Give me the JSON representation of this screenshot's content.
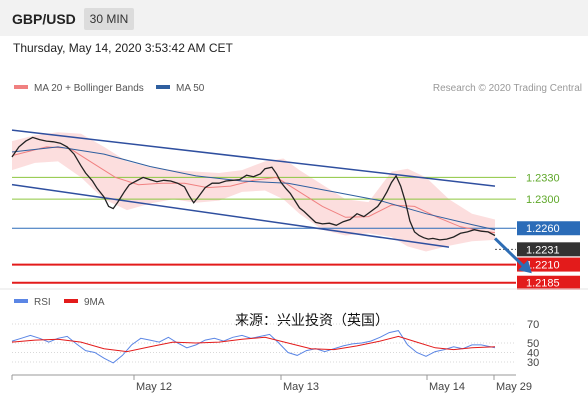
{
  "header": {
    "symbol": "GBP/USD",
    "timeframe": "30 MIN"
  },
  "timestamp": "Thursday, May 14, 2020 3:53:42 AM CET",
  "watermark": "来源：兴业投资（英国）",
  "chart_data": [
    {
      "type": "line",
      "title": "",
      "legend": [
        {
          "label": "MA 20 + Bollinger Bands",
          "color": "#f08080"
        },
        {
          "label": "MA 50",
          "color": "#2f5f9f"
        }
      ],
      "credit": "Research © 2020 Trading Central",
      "legend_position": "top-left",
      "ylim": [
        1.2175,
        1.242
      ],
      "x_labels": [
        "May 12",
        "May 13",
        "May 14",
        "May 29"
      ],
      "price_series": [
        [
          0,
          1.2358
        ],
        [
          3,
          1.2372
        ],
        [
          6,
          1.238
        ],
        [
          9,
          1.2385
        ],
        [
          12,
          1.2382
        ],
        [
          15,
          1.238
        ],
        [
          18,
          1.2379
        ],
        [
          21,
          1.2377
        ],
        [
          24,
          1.2372
        ],
        [
          27,
          1.2362
        ],
        [
          30,
          1.2346
        ],
        [
          32,
          1.2336
        ],
        [
          35,
          1.2325
        ],
        [
          37,
          1.2315
        ],
        [
          40,
          1.2303
        ],
        [
          42,
          1.229
        ],
        [
          44,
          1.2287
        ],
        [
          46,
          1.2296
        ],
        [
          49,
          1.2311
        ],
        [
          51,
          1.232
        ],
        [
          54,
          1.2325
        ],
        [
          57,
          1.233
        ],
        [
          60,
          1.2327
        ],
        [
          63,
          1.2324
        ],
        [
          66,
          1.2326
        ],
        [
          69,
          1.2325
        ],
        [
          72,
          1.2322
        ],
        [
          75,
          1.2317
        ],
        [
          77,
          1.2305
        ],
        [
          79,
          1.2295
        ],
        [
          81,
          1.2303
        ],
        [
          84,
          1.2316
        ],
        [
          87,
          1.2322
        ],
        [
          90,
          1.2322
        ],
        [
          93,
          1.2325
        ],
        [
          96,
          1.2326
        ],
        [
          99,
          1.2327
        ],
        [
          102,
          1.2333
        ],
        [
          105,
          1.2331
        ],
        [
          108,
          1.2335
        ],
        [
          110,
          1.2342
        ],
        [
          113,
          1.2344
        ],
        [
          115,
          1.2335
        ],
        [
          117,
          1.2323
        ],
        [
          119,
          1.2315
        ],
        [
          121,
          1.2308
        ],
        [
          123,
          1.2298
        ],
        [
          125,
          1.2288
        ],
        [
          127,
          1.2283
        ],
        [
          129,
          1.2277
        ],
        [
          132,
          1.2268
        ],
        [
          135,
          1.2266
        ],
        [
          138,
          1.2267
        ],
        [
          141,
          1.2264
        ],
        [
          144,
          1.2269
        ],
        [
          147,
          1.2272
        ],
        [
          150,
          1.228
        ],
        [
          153,
          1.2276
        ],
        [
          156,
          1.2283
        ],
        [
          159,
          1.229
        ],
        [
          161,
          1.2299
        ],
        [
          163,
          1.231
        ],
        [
          165,
          1.2323
        ],
        [
          167,
          1.2332
        ],
        [
          169,
          1.2318
        ],
        [
          171,
          1.2297
        ],
        [
          173,
          1.227
        ],
        [
          175,
          1.2255
        ],
        [
          177,
          1.225
        ],
        [
          179,
          1.2247
        ],
        [
          181,
          1.2245
        ],
        [
          183,
          1.2246
        ],
        [
          186,
          1.2244
        ],
        [
          189,
          1.2245
        ],
        [
          192,
          1.2248
        ],
        [
          195,
          1.2253
        ],
        [
          198,
          1.2255
        ],
        [
          201,
          1.2258
        ],
        [
          204,
          1.2256
        ],
        [
          207,
          1.2255
        ],
        [
          210,
          1.225
        ]
      ],
      "series": [
        {
          "name": "MA 20",
          "color": "#f08080",
          "values": [
            [
              0,
              1.236
            ],
            [
              15,
              1.2372
            ],
            [
              25,
              1.237
            ],
            [
              35,
              1.235
            ],
            [
              45,
              1.233
            ],
            [
              55,
              1.232
            ],
            [
              65,
              1.2322
            ],
            [
              75,
              1.2322
            ],
            [
              85,
              1.2316
            ],
            [
              95,
              1.2318
            ],
            [
              105,
              1.2326
            ],
            [
              115,
              1.233
            ],
            [
              125,
              1.231
            ],
            [
              135,
              1.229
            ],
            [
              145,
              1.2275
            ],
            [
              155,
              1.2276
            ],
            [
              165,
              1.2292
            ],
            [
              175,
              1.229
            ],
            [
              185,
              1.2275
            ],
            [
              195,
              1.2262
            ],
            [
              205,
              1.2256
            ],
            [
              210,
              1.2254
            ]
          ]
        },
        {
          "name": "MA 50",
          "color": "#2f5f9f",
          "values": [
            [
              0,
              1.2365
            ],
            [
              20,
              1.2372
            ],
            [
              40,
              1.2362
            ],
            [
              60,
              1.2345
            ],
            [
              80,
              1.2332
            ],
            [
              100,
              1.2325
            ],
            [
              120,
              1.2322
            ],
            [
              140,
              1.231
            ],
            [
              160,
              1.2298
            ],
            [
              180,
              1.228
            ],
            [
              200,
              1.2265
            ],
            [
              210,
              1.2258
            ]
          ]
        }
      ],
      "bollinger_upper": [
        [
          0,
          1.238
        ],
        [
          10,
          1.2388
        ],
        [
          20,
          1.2392
        ],
        [
          30,
          1.239
        ],
        [
          40,
          1.2372
        ],
        [
          50,
          1.2352
        ],
        [
          60,
          1.2344
        ],
        [
          70,
          1.234
        ],
        [
          80,
          1.2338
        ],
        [
          90,
          1.2336
        ],
        [
          100,
          1.234
        ],
        [
          110,
          1.2352
        ],
        [
          118,
          1.2356
        ],
        [
          125,
          1.234
        ],
        [
          135,
          1.232
        ],
        [
          145,
          1.23
        ],
        [
          155,
          1.2296
        ],
        [
          165,
          1.2338
        ],
        [
          172,
          1.2342
        ],
        [
          180,
          1.233
        ],
        [
          190,
          1.23
        ],
        [
          200,
          1.228
        ],
        [
          210,
          1.2272
        ]
      ],
      "bollinger_lower": [
        [
          0,
          1.234
        ],
        [
          10,
          1.235
        ],
        [
          20,
          1.2352
        ],
        [
          30,
          1.233
        ],
        [
          40,
          1.23
        ],
        [
          50,
          1.2285
        ],
        [
          60,
          1.2294
        ],
        [
          70,
          1.23
        ],
        [
          80,
          1.2295
        ],
        [
          90,
          1.2298
        ],
        [
          100,
          1.231
        ],
        [
          110,
          1.2312
        ],
        [
          118,
          1.23
        ],
        [
          125,
          1.228
        ],
        [
          135,
          1.2258
        ],
        [
          145,
          1.225
        ],
        [
          155,
          1.2253
        ],
        [
          165,
          1.2248
        ],
        [
          172,
          1.2235
        ],
        [
          180,
          1.2228
        ],
        [
          190,
          1.2236
        ],
        [
          200,
          1.2242
        ],
        [
          210,
          1.2244
        ]
      ],
      "trend_channel": {
        "upper": [
          [
            0,
            1.2395
          ],
          [
            210,
            1.2318
          ]
        ],
        "lower": [
          [
            0,
            1.232
          ],
          [
            190,
            1.2234
          ]
        ]
      },
      "levels": [
        {
          "value": 1.233,
          "label": "1.2330",
          "kind": "resistance",
          "color": "#8dc63f"
        },
        {
          "value": 1.23,
          "label": "1.2300",
          "kind": "resistance",
          "color": "#8dc63f"
        },
        {
          "value": 1.226,
          "label": "1.2260",
          "kind": "pivot",
          "color": "#2b6cb8"
        },
        {
          "value": 1.2231,
          "label": "1.2231",
          "kind": "last-price",
          "color": "#333333"
        },
        {
          "value": 1.221,
          "label": "1.2210",
          "kind": "support",
          "color": "#e31b1b"
        },
        {
          "value": 1.2185,
          "label": "1.2185",
          "kind": "support",
          "color": "#e31b1b"
        }
      ],
      "forecast_arrow": {
        "from": [
          210,
          1.2246
        ],
        "to": [
          226,
          1.2198
        ]
      }
    },
    {
      "type": "line",
      "title": "",
      "legend": [
        {
          "label": "RSI",
          "color": "#5b86e5"
        },
        {
          "label": "9MA",
          "color": "#e31b1b"
        }
      ],
      "ylim": [
        25,
        75
      ],
      "y_ticks": [
        70,
        50,
        40,
        30
      ],
      "series": [
        {
          "name": "RSI",
          "color": "#5b86e5",
          "values": [
            [
              0,
              52
            ],
            [
              4,
              55
            ],
            [
              8,
              58
            ],
            [
              12,
              55
            ],
            [
              16,
              51
            ],
            [
              20,
              55
            ],
            [
              24,
              57
            ],
            [
              28,
              49
            ],
            [
              32,
              42
            ],
            [
              36,
              40
            ],
            [
              40,
              34
            ],
            [
              44,
              29
            ],
            [
              48,
              37
            ],
            [
              52,
              48
            ],
            [
              56,
              55
            ],
            [
              60,
              53
            ],
            [
              64,
              51
            ],
            [
              68,
              56
            ],
            [
              72,
              50
            ],
            [
              76,
              45
            ],
            [
              80,
              48
            ],
            [
              84,
              53
            ],
            [
              88,
              55
            ],
            [
              92,
              52
            ],
            [
              96,
              56
            ],
            [
              100,
              58
            ],
            [
              104,
              55
            ],
            [
              108,
              57
            ],
            [
              112,
              59
            ],
            [
              116,
              50
            ],
            [
              120,
              40
            ],
            [
              124,
              37
            ],
            [
              128,
              42
            ],
            [
              132,
              44
            ],
            [
              136,
              41
            ],
            [
              140,
              44
            ],
            [
              144,
              47
            ],
            [
              148,
              49
            ],
            [
              152,
              50
            ],
            [
              156,
              52
            ],
            [
              160,
              56
            ],
            [
              164,
              61
            ],
            [
              168,
              63
            ],
            [
              172,
              48
            ],
            [
              176,
              40
            ],
            [
              180,
              36
            ],
            [
              184,
              41
            ],
            [
              188,
              43
            ],
            [
              192,
              46
            ],
            [
              196,
              44
            ],
            [
              200,
              48
            ],
            [
              204,
              48
            ],
            [
              208,
              46
            ],
            [
              210,
              45
            ]
          ]
        },
        {
          "name": "9MA",
          "color": "#e31b1b",
          "values": [
            [
              0,
              51
            ],
            [
              10,
              53
            ],
            [
              20,
              54
            ],
            [
              30,
              51
            ],
            [
              40,
              44
            ],
            [
              50,
              41
            ],
            [
              60,
              46
            ],
            [
              70,
              51
            ],
            [
              80,
              50
            ],
            [
              90,
              51
            ],
            [
              100,
              54
            ],
            [
              110,
              56
            ],
            [
              120,
              50
            ],
            [
              130,
              44
            ],
            [
              140,
              43
            ],
            [
              150,
              47
            ],
            [
              160,
              52
            ],
            [
              168,
              57
            ],
            [
              176,
              51
            ],
            [
              184,
              45
            ],
            [
              192,
              43
            ],
            [
              200,
              45
            ],
            [
              210,
              46
            ]
          ]
        }
      ]
    }
  ]
}
